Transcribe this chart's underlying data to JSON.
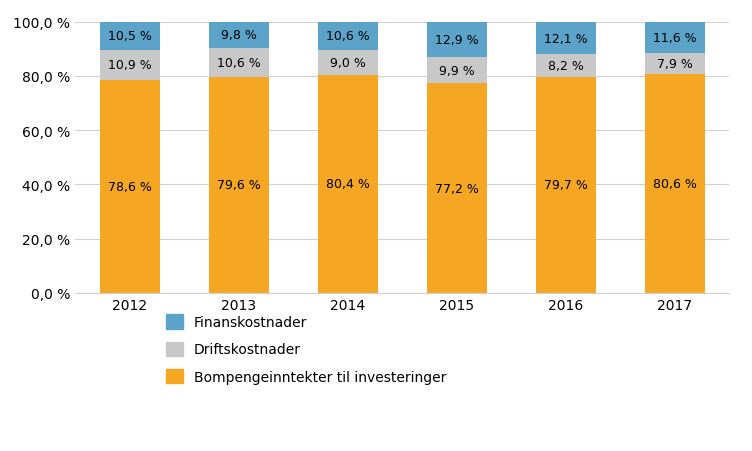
{
  "years": [
    "2012",
    "2013",
    "2014",
    "2015",
    "2016",
    "2017"
  ],
  "finanskostnader": [
    10.5,
    9.8,
    10.6,
    12.9,
    12.1,
    11.6
  ],
  "driftskostnader": [
    10.9,
    10.6,
    9.0,
    9.9,
    8.2,
    7.9
  ],
  "bompenge": [
    78.6,
    79.6,
    80.4,
    77.2,
    79.7,
    80.6
  ],
  "finanskostnader_labels": [
    "10,5 %",
    "9,8 %",
    "10,6 %",
    "12,9 %",
    "12,1 %",
    "11,6 %"
  ],
  "driftskostnader_labels": [
    "10,9 %",
    "10,6 %",
    "9,0 %",
    "9,9 %",
    "8,2 %",
    "7,9 %"
  ],
  "bompenge_labels": [
    "78,6 %",
    "79,6 %",
    "80,4 %",
    "77,2 %",
    "79,7 %",
    "80,6 %"
  ],
  "color_finanskostnader": "#5ba3c9",
  "color_driftskostnader": "#c8c8c8",
  "color_bompenge": "#f5a623",
  "legend_labels": [
    "Finanskostnader",
    "Driftskostnader",
    "Bompengeinntekter til investeringer"
  ],
  "ylim": [
    0,
    100
  ],
  "yticks": [
    0,
    20,
    40,
    60,
    80,
    100
  ],
  "ytick_labels": [
    "0,0 %",
    "20,0 %",
    "40,0 %",
    "60,0 %",
    "80,0 %",
    "100,0 %"
  ],
  "background_color": "#ffffff",
  "bar_width": 0.55,
  "label_fontsize": 9,
  "tick_fontsize": 10,
  "legend_fontsize": 10
}
